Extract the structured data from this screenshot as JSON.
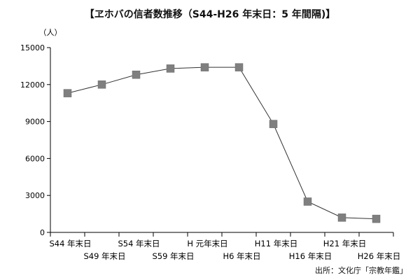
{
  "chart_data": {
    "type": "line",
    "title": "【ヱホバの信者数推移（S44-H26 年末日：5 年間隔)】",
    "y_unit": "（人）",
    "source": "出所：文化庁「宗教年鑑」",
    "categories": [
      "S44 年末日",
      "S49 年末日",
      "S54 年末日",
      "S59 年末日",
      "H 元年末日",
      "H6 年末日",
      "H11 年末日",
      "H16 年末日",
      "H21 年末日",
      "H26 年末日"
    ],
    "values": [
      11300,
      12000,
      12800,
      13300,
      13400,
      13400,
      8800,
      2500,
      1200,
      1100
    ],
    "ylim": [
      0,
      15000
    ],
    "yticks": [
      0,
      3000,
      6000,
      9000,
      12000,
      15000
    ],
    "grid": false,
    "colors": {
      "marker": "#7f7f7f",
      "line": "#333333",
      "axis": "#000000"
    }
  }
}
